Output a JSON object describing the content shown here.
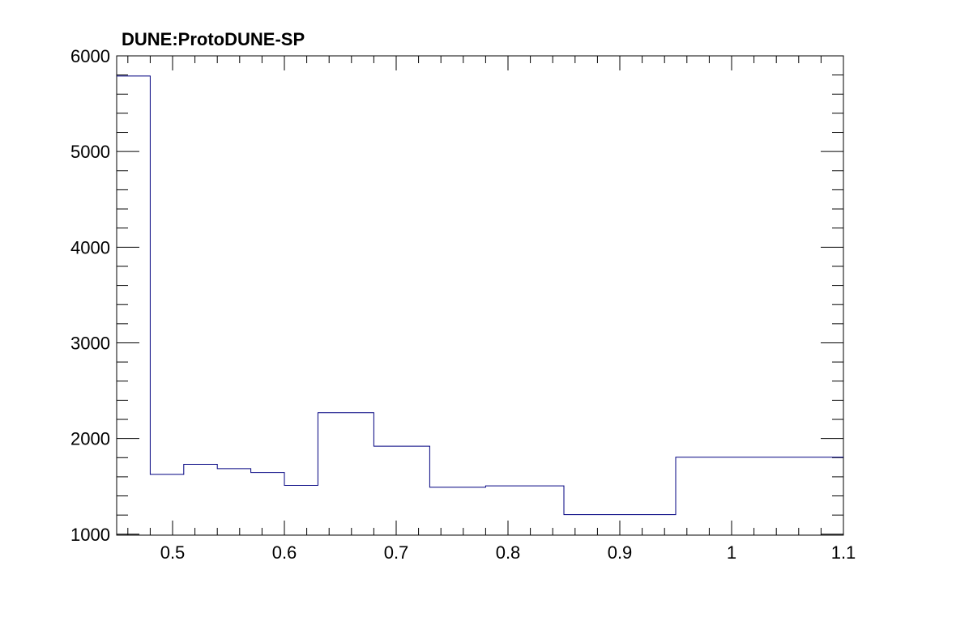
{
  "chart_data": {
    "type": "histogram",
    "title": "DUNE:ProtoDUNE-SP",
    "xlabel": "",
    "ylabel": "",
    "xlim": [
      0.45,
      1.1
    ],
    "ylim": [
      990,
      6000
    ],
    "x_ticks": [
      "0.5",
      "0.6",
      "0.7",
      "0.8",
      "0.9",
      "1",
      "1.1"
    ],
    "y_ticks": [
      "1000",
      "2000",
      "3000",
      "4000",
      "5000",
      "6000"
    ],
    "series_color": "#000080",
    "grid": false,
    "bins": [
      {
        "x0": 0.45,
        "x1": 0.48,
        "value": 5790
      },
      {
        "x0": 0.48,
        "x1": 0.51,
        "value": 1625
      },
      {
        "x0": 0.51,
        "x1": 0.54,
        "value": 1730
      },
      {
        "x0": 0.54,
        "x1": 0.57,
        "value": 1685
      },
      {
        "x0": 0.57,
        "x1": 0.6,
        "value": 1645
      },
      {
        "x0": 0.6,
        "x1": 0.63,
        "value": 1510
      },
      {
        "x0": 0.63,
        "x1": 0.68,
        "value": 2270
      },
      {
        "x0": 0.68,
        "x1": 0.73,
        "value": 1920
      },
      {
        "x0": 0.73,
        "x1": 0.78,
        "value": 1490
      },
      {
        "x0": 0.78,
        "x1": 0.85,
        "value": 1505
      },
      {
        "x0": 0.85,
        "x1": 0.95,
        "value": 1205
      },
      {
        "x0": 0.95,
        "x1": 1.1,
        "value": 1805
      }
    ]
  }
}
